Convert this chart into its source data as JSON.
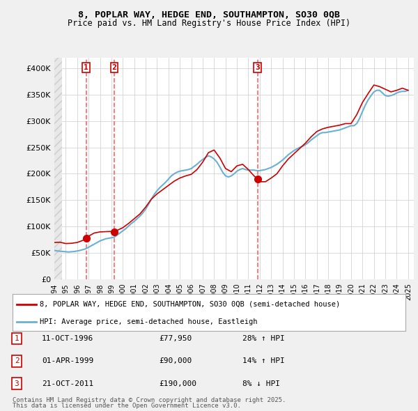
{
  "title_line1": "8, POPLAR WAY, HEDGE END, SOUTHAMPTON, SO30 0QB",
  "title_line2": "Price paid vs. HM Land Registry's House Price Index (HPI)",
  "ylabel": "",
  "xlim_start": 1994.0,
  "xlim_end": 2025.5,
  "ylim_min": 0,
  "ylim_max": 420000,
  "yticks": [
    0,
    50000,
    100000,
    150000,
    200000,
    250000,
    300000,
    350000,
    400000
  ],
  "ytick_labels": [
    "£0",
    "£50K",
    "£100K",
    "£150K",
    "£200K",
    "£250K",
    "£300K",
    "£350K",
    "£400K"
  ],
  "hpi_color": "#6ab0d4",
  "price_color": "#cc0000",
  "marker_color": "#cc0000",
  "vline_color": "#ff6666",
  "annotation_box_color": "#cc0000",
  "background_color": "#f0f0f0",
  "plot_bg_color": "#ffffff",
  "hatch_color": "#d0d0d0",
  "legend_label_price": "8, POPLAR WAY, HEDGE END, SOUTHAMPTON, SO30 0QB (semi-detached house)",
  "legend_label_hpi": "HPI: Average price, semi-detached house, Eastleigh",
  "footer_line1": "Contains HM Land Registry data © Crown copyright and database right 2025.",
  "footer_line2": "This data is licensed under the Open Government Licence v3.0.",
  "sales": [
    {
      "num": 1,
      "date_x": 1996.78,
      "price": 77950,
      "label": "1"
    },
    {
      "num": 2,
      "date_x": 1999.25,
      "price": 90000,
      "label": "2"
    },
    {
      "num": 3,
      "date_x": 2011.8,
      "price": 190000,
      "label": "3"
    }
  ],
  "sale_table": [
    {
      "num": "1",
      "date": "11-OCT-1996",
      "price": "£77,950",
      "hpi": "28% ↑ HPI"
    },
    {
      "num": "2",
      "date": "01-APR-1999",
      "price": "£90,000",
      "hpi": "14% ↑ HPI"
    },
    {
      "num": "3",
      "date": "21-OCT-2011",
      "price": "£190,000",
      "hpi": "8% ↓ HPI"
    }
  ],
  "hpi_data": {
    "x": [
      1994.0,
      1994.25,
      1994.5,
      1994.75,
      1995.0,
      1995.25,
      1995.5,
      1995.75,
      1996.0,
      1996.25,
      1996.5,
      1996.75,
      1997.0,
      1997.25,
      1997.5,
      1997.75,
      1998.0,
      1998.25,
      1998.5,
      1998.75,
      1999.0,
      1999.25,
      1999.5,
      1999.75,
      2000.0,
      2000.25,
      2000.5,
      2000.75,
      2001.0,
      2001.25,
      2001.5,
      2001.75,
      2002.0,
      2002.25,
      2002.5,
      2002.75,
      2003.0,
      2003.25,
      2003.5,
      2003.75,
      2004.0,
      2004.25,
      2004.5,
      2004.75,
      2005.0,
      2005.25,
      2005.5,
      2005.75,
      2006.0,
      2006.25,
      2006.5,
      2006.75,
      2007.0,
      2007.25,
      2007.5,
      2007.75,
      2008.0,
      2008.25,
      2008.5,
      2008.75,
      2009.0,
      2009.25,
      2009.5,
      2009.75,
      2010.0,
      2010.25,
      2010.5,
      2010.75,
      2011.0,
      2011.25,
      2011.5,
      2011.75,
      2012.0,
      2012.25,
      2012.5,
      2012.75,
      2013.0,
      2013.25,
      2013.5,
      2013.75,
      2014.0,
      2014.25,
      2014.5,
      2014.75,
      2015.0,
      2015.25,
      2015.5,
      2015.75,
      2016.0,
      2016.25,
      2016.5,
      2016.75,
      2017.0,
      2017.25,
      2017.5,
      2017.75,
      2018.0,
      2018.25,
      2018.5,
      2018.75,
      2019.0,
      2019.25,
      2019.5,
      2019.75,
      2020.0,
      2020.25,
      2020.5,
      2020.75,
      2021.0,
      2021.25,
      2021.5,
      2021.75,
      2022.0,
      2022.25,
      2022.5,
      2022.75,
      2023.0,
      2023.25,
      2023.5,
      2023.75,
      2024.0,
      2024.25,
      2024.5,
      2024.75,
      2025.0
    ],
    "y": [
      55000,
      54000,
      53500,
      53000,
      52500,
      52000,
      52500,
      53000,
      54000,
      55000,
      56500,
      58000,
      61000,
      64000,
      67000,
      70000,
      73000,
      75000,
      77000,
      78000,
      79000,
      80000,
      84000,
      88000,
      92000,
      96000,
      101000,
      106000,
      110000,
      115000,
      120000,
      126000,
      133000,
      142000,
      152000,
      161000,
      168000,
      174000,
      179000,
      184000,
      190000,
      196000,
      200000,
      203000,
      205000,
      206000,
      207000,
      208000,
      210000,
      214000,
      218000,
      223000,
      227000,
      231000,
      234000,
      232000,
      228000,
      222000,
      213000,
      203000,
      196000,
      194000,
      196000,
      200000,
      205000,
      208000,
      210000,
      208000,
      207000,
      207000,
      207000,
      206000,
      206000,
      207000,
      208000,
      210000,
      212000,
      215000,
      218000,
      222000,
      226000,
      231000,
      236000,
      240000,
      244000,
      247000,
      250000,
      252000,
      255000,
      259000,
      264000,
      268000,
      272000,
      276000,
      278000,
      278000,
      279000,
      280000,
      281000,
      282000,
      283000,
      285000,
      287000,
      289000,
      291000,
      291000,
      295000,
      305000,
      318000,
      330000,
      340000,
      348000,
      355000,
      358000,
      358000,
      353000,
      348000,
      347000,
      348000,
      350000,
      353000,
      355000,
      356000,
      356000,
      358000
    ]
  },
  "price_data": {
    "x": [
      1994.0,
      1994.5,
      1995.0,
      1995.5,
      1996.0,
      1996.5,
      1996.78,
      1997.0,
      1997.5,
      1998.0,
      1998.5,
      1999.0,
      1999.25,
      1999.5,
      2000.0,
      2000.5,
      2001.0,
      2001.5,
      2002.0,
      2002.5,
      2003.0,
      2003.5,
      2004.0,
      2004.5,
      2005.0,
      2005.5,
      2006.0,
      2006.5,
      2007.0,
      2007.5,
      2008.0,
      2008.5,
      2009.0,
      2009.5,
      2010.0,
      2010.5,
      2011.0,
      2011.5,
      2011.8,
      2012.0,
      2012.5,
      2013.0,
      2013.5,
      2014.0,
      2014.5,
      2015.0,
      2015.5,
      2016.0,
      2016.5,
      2017.0,
      2017.5,
      2018.0,
      2018.5,
      2019.0,
      2019.5,
      2020.0,
      2020.5,
      2021.0,
      2021.5,
      2022.0,
      2022.5,
      2023.0,
      2023.5,
      2024.0,
      2024.5,
      2025.0
    ],
    "y": [
      70000,
      70500,
      68000,
      68500,
      70000,
      74000,
      77950,
      82000,
      88000,
      90000,
      90500,
      91000,
      90000,
      93000,
      98000,
      106000,
      115000,
      124000,
      137000,
      152000,
      162000,
      170000,
      178000,
      186000,
      192000,
      196000,
      199000,
      208000,
      222000,
      240000,
      245000,
      230000,
      210000,
      204000,
      215000,
      218000,
      208000,
      196000,
      190000,
      185000,
      185000,
      192000,
      200000,
      215000,
      228000,
      238000,
      248000,
      258000,
      270000,
      280000,
      285000,
      288000,
      290000,
      292000,
      295000,
      295000,
      312000,
      335000,
      352000,
      368000,
      365000,
      360000,
      355000,
      358000,
      362000,
      358000
    ]
  }
}
